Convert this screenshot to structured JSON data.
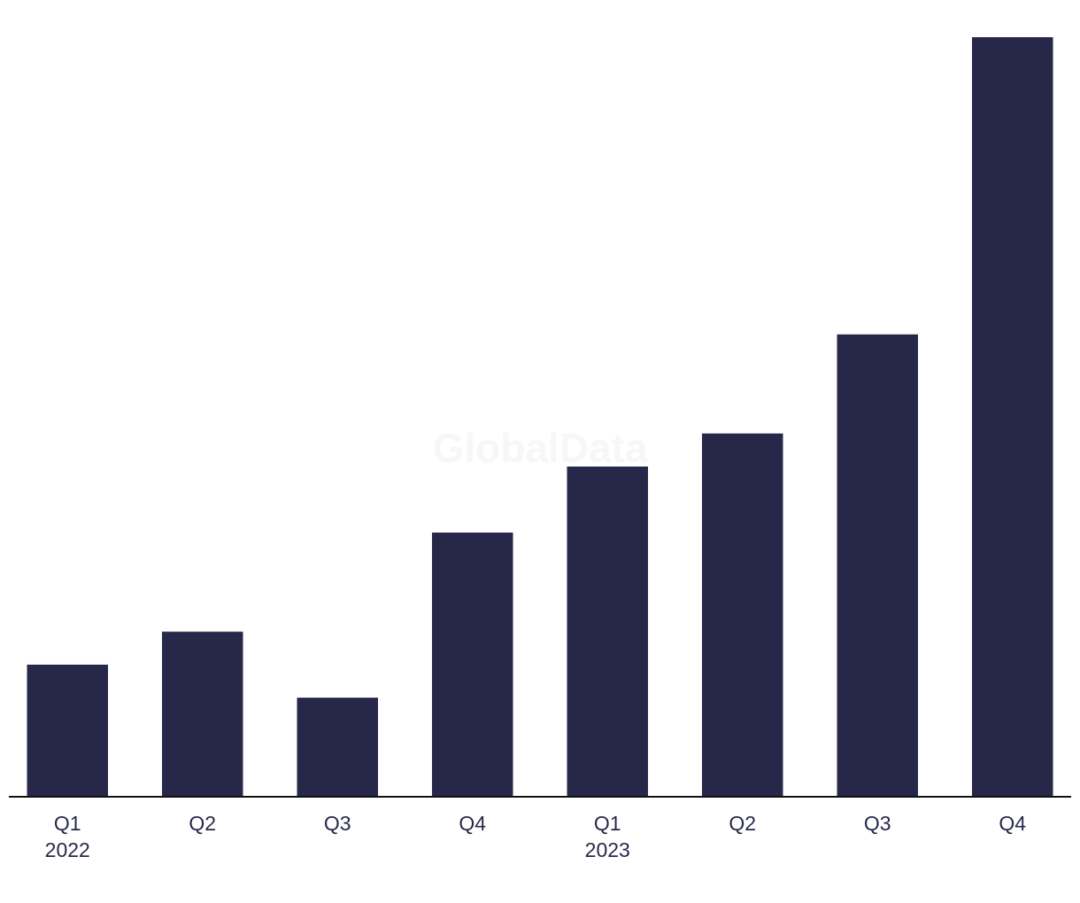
{
  "chart_data": {
    "type": "bar",
    "watermark": "GlobalData",
    "categories": [
      "Q1",
      "Q2",
      "Q3",
      "Q4",
      "Q1",
      "Q2",
      "Q3",
      "Q4"
    ],
    "year_labels": [
      "2022",
      null,
      null,
      null,
      "2023",
      null,
      null,
      null
    ],
    "values": [
      4,
      5,
      3,
      8,
      10,
      11,
      14,
      23
    ],
    "color": "#272849",
    "ylim": [
      0,
      23
    ],
    "grid": false
  }
}
